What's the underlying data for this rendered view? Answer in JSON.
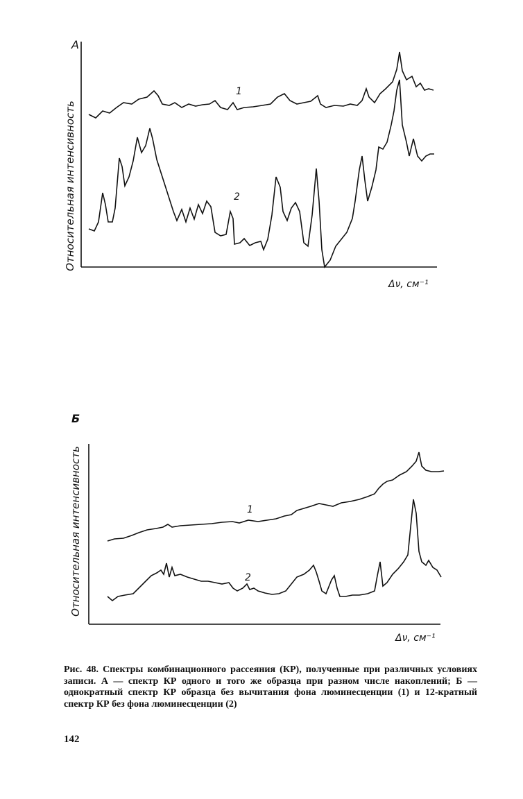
{
  "figures": [
    {
      "label": "А",
      "y_axis_label": "Относительная интенсивность",
      "x_axis_label": "Δν, см⁻¹",
      "curve_labels": [
        "1",
        "2"
      ]
    },
    {
      "label": "Б",
      "y_axis_label": "Относительная интенсивность",
      "x_axis_label": "Δν, см⁻¹",
      "curve_labels": [
        "1",
        "2"
      ]
    }
  ],
  "caption": "Рис. 48. Спектры комбинационного рассеяния (КР), полученные при различных условиях записи. А — спектр КР одного и того же образца при разном числе накоплений; Б — однократный спектр КР образца без вычитания фона люминесценции (1) и 12-кратный спектр КР без фона люминесценции (2)",
  "page_number": "142"
}
